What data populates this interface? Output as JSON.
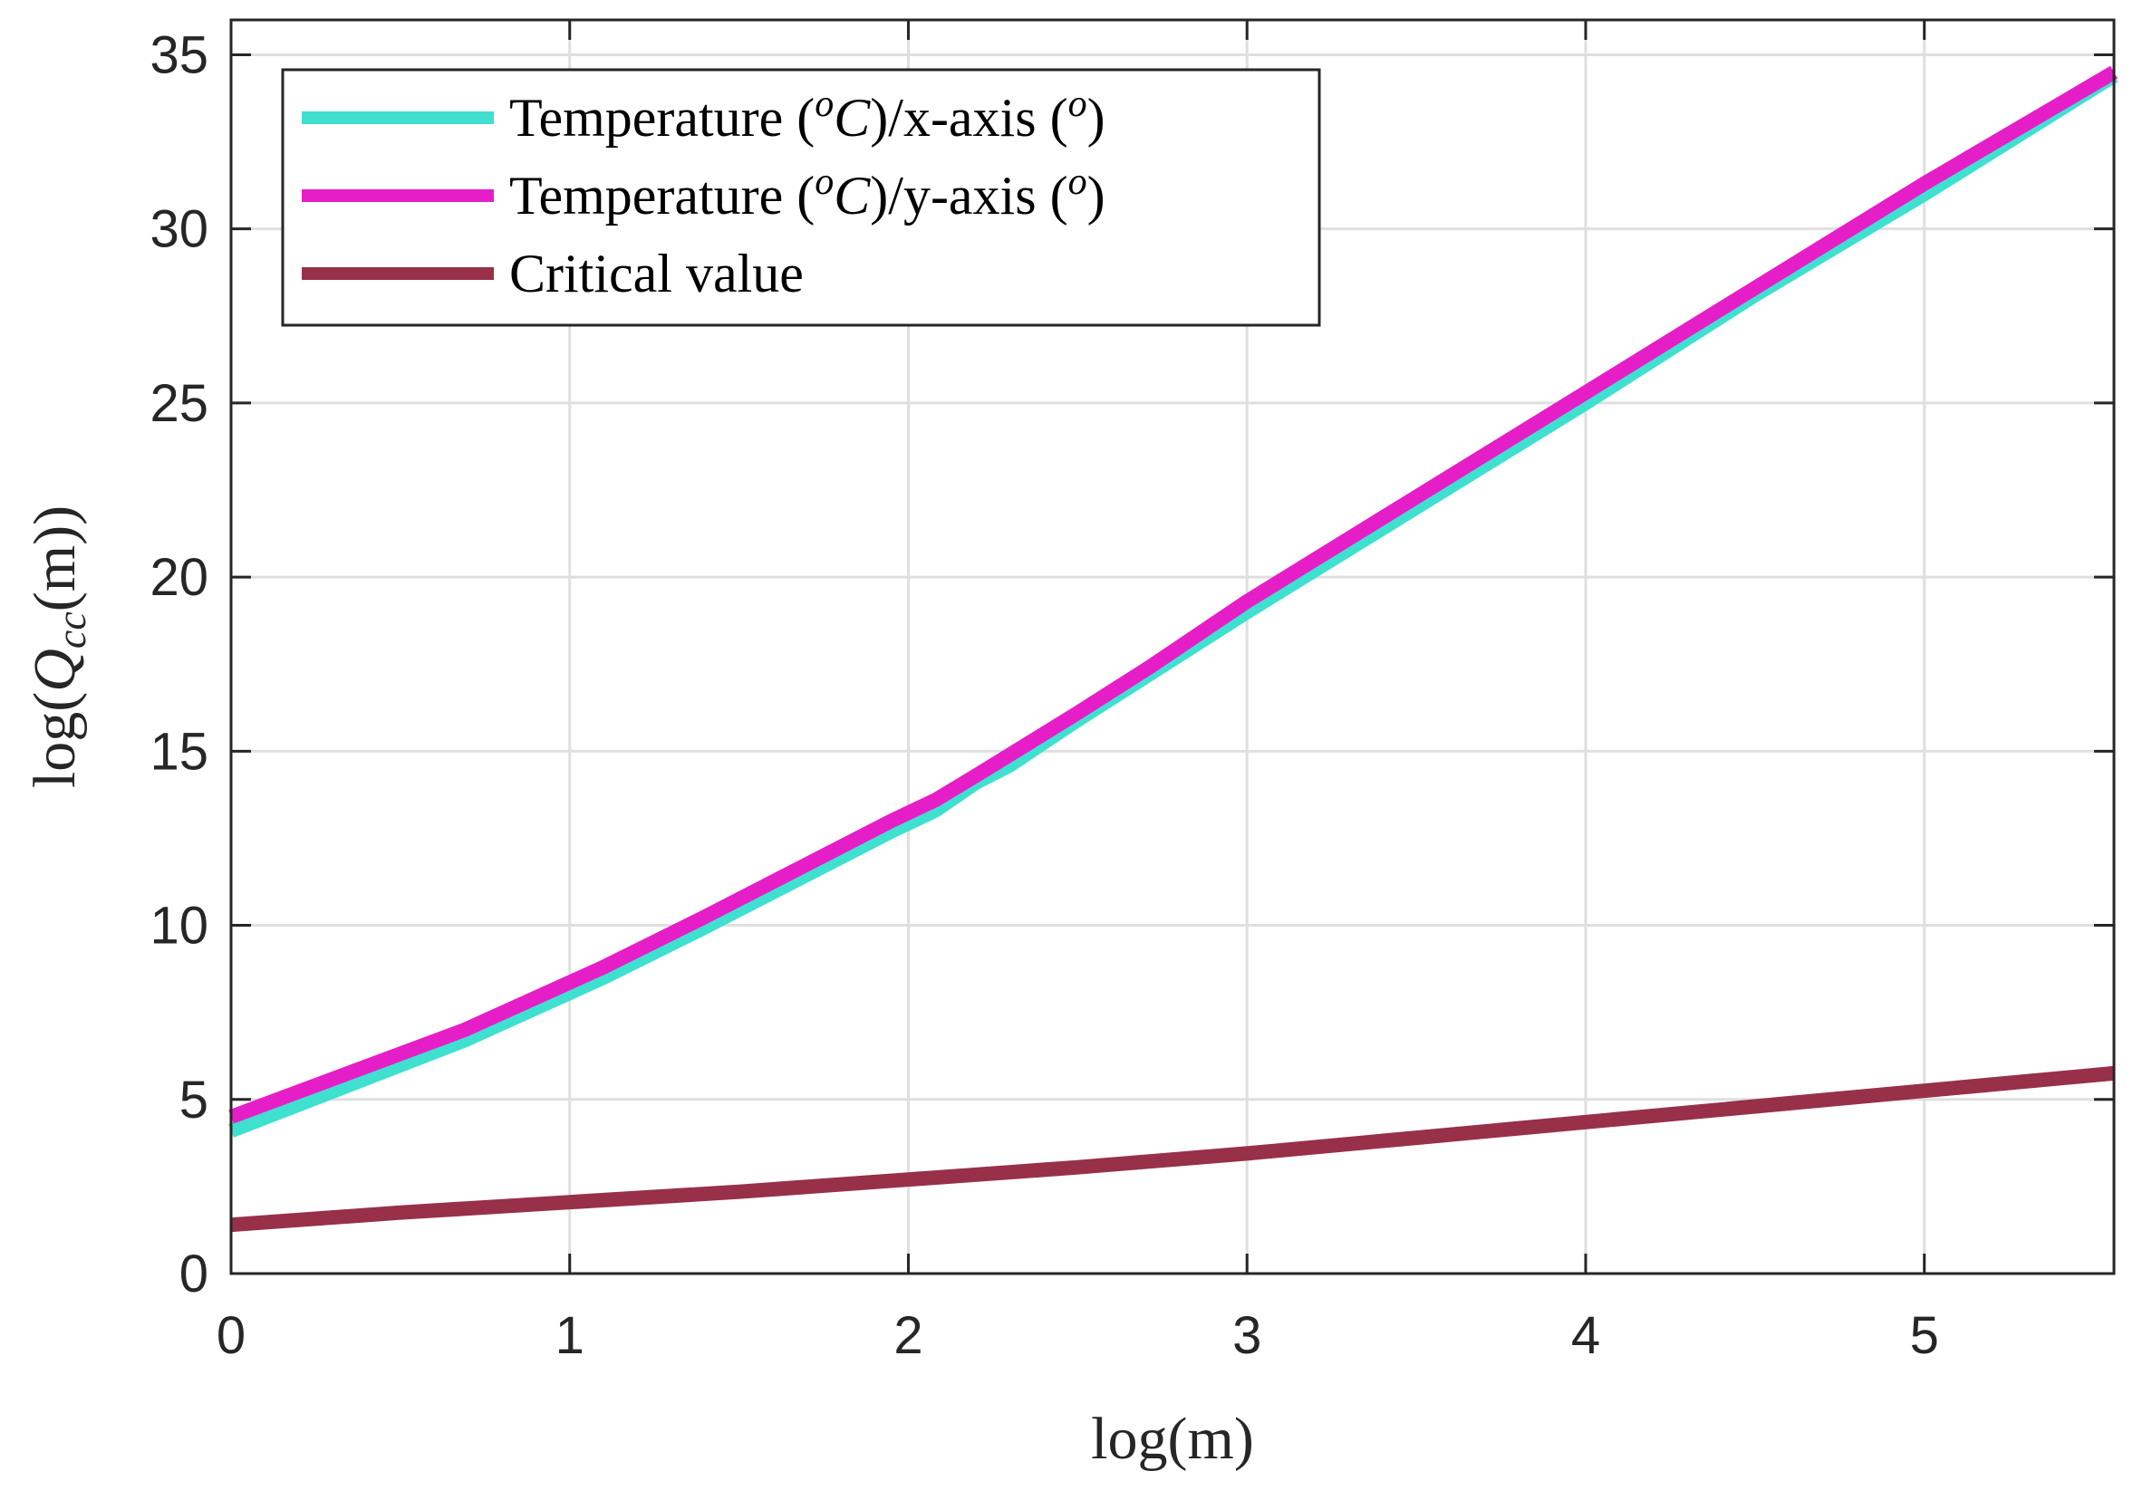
{
  "chart_data": {
    "type": "line",
    "title": "",
    "xlabel": "log(m)",
    "ylabel": {
      "prefix": "log(",
      "var": "Q",
      "sub": "cc",
      "suffix": "(m))"
    },
    "xlim": [
      0,
      5.56
    ],
    "ylim": [
      0,
      36
    ],
    "xticks": [
      0,
      1,
      2,
      3,
      4,
      5
    ],
    "yticks": [
      0,
      5,
      10,
      15,
      20,
      25,
      30,
      35
    ],
    "grid": true,
    "legend_position": "top-left",
    "series": [
      {
        "name": "Temperature (°C)/x-axis (°)",
        "legend": {
          "pre": "Temperature (",
          "sup": "o",
          "unit": "C",
          "mid": ")/x-axis (",
          "sup2": "o",
          "end": ")"
        },
        "color": "#40e0d0",
        "x": [
          0,
          0.69,
          1.1,
          1.39,
          1.61,
          1.79,
          1.95,
          2.08,
          2.2,
          2.3,
          2.5,
          2.71,
          3.0,
          3.5,
          4.0,
          4.5,
          5.0,
          5.56
        ],
        "values": [
          4.1,
          6.7,
          8.5,
          9.9,
          11.0,
          11.9,
          12.7,
          13.3,
          14.1,
          14.6,
          15.9,
          17.2,
          19.0,
          22.0,
          25.0,
          28.1,
          31.0,
          34.4
        ]
      },
      {
        "name": "Temperature (°C)/y-axis (°)",
        "legend": {
          "pre": "Temperature (",
          "sup": "o",
          "unit": "C",
          "mid": ")/y-axis (",
          "sup2": "o",
          "end": ")"
        },
        "color": "#e61ec8",
        "x": [
          0,
          0.69,
          1.1,
          1.39,
          1.61,
          1.79,
          1.95,
          2.08,
          2.2,
          2.3,
          2.5,
          2.71,
          3.0,
          3.5,
          4.0,
          4.5,
          5.0,
          5.56
        ],
        "values": [
          4.5,
          7.0,
          8.8,
          10.2,
          11.3,
          12.2,
          13.0,
          13.6,
          14.3,
          14.9,
          16.1,
          17.4,
          19.3,
          22.3,
          25.3,
          28.3,
          31.3,
          34.5
        ]
      },
      {
        "name": "Critical value",
        "legend": {
          "pre": "Critical value"
        },
        "color": "#98304a",
        "x": [
          0,
          0.5,
          1.0,
          1.5,
          2.0,
          2.5,
          3.0,
          3.5,
          4.0,
          4.5,
          5.0,
          5.56
        ],
        "values": [
          1.4,
          1.75,
          2.05,
          2.35,
          2.7,
          3.05,
          3.45,
          3.9,
          4.35,
          4.8,
          5.25,
          5.75
        ]
      }
    ]
  }
}
